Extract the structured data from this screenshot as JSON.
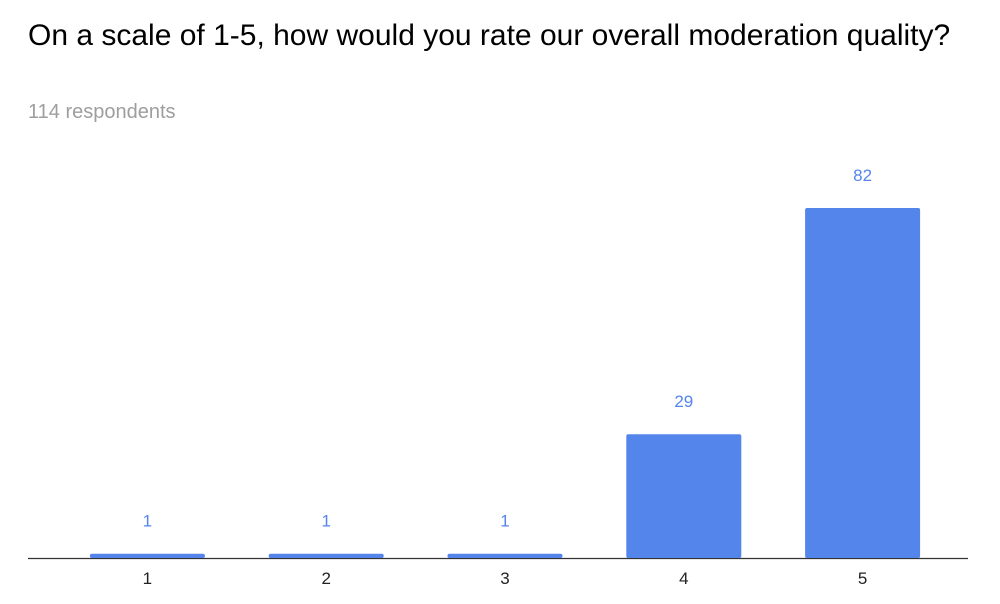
{
  "chart_data": {
    "type": "bar",
    "title": "On a scale of 1-5, how would you rate our overall moderation quality?",
    "subtitle": "114 respondents",
    "categories": [
      "1",
      "2",
      "3",
      "4",
      "5"
    ],
    "values": [
      1,
      1,
      1,
      29,
      82
    ],
    "color": "#5385eb"
  }
}
